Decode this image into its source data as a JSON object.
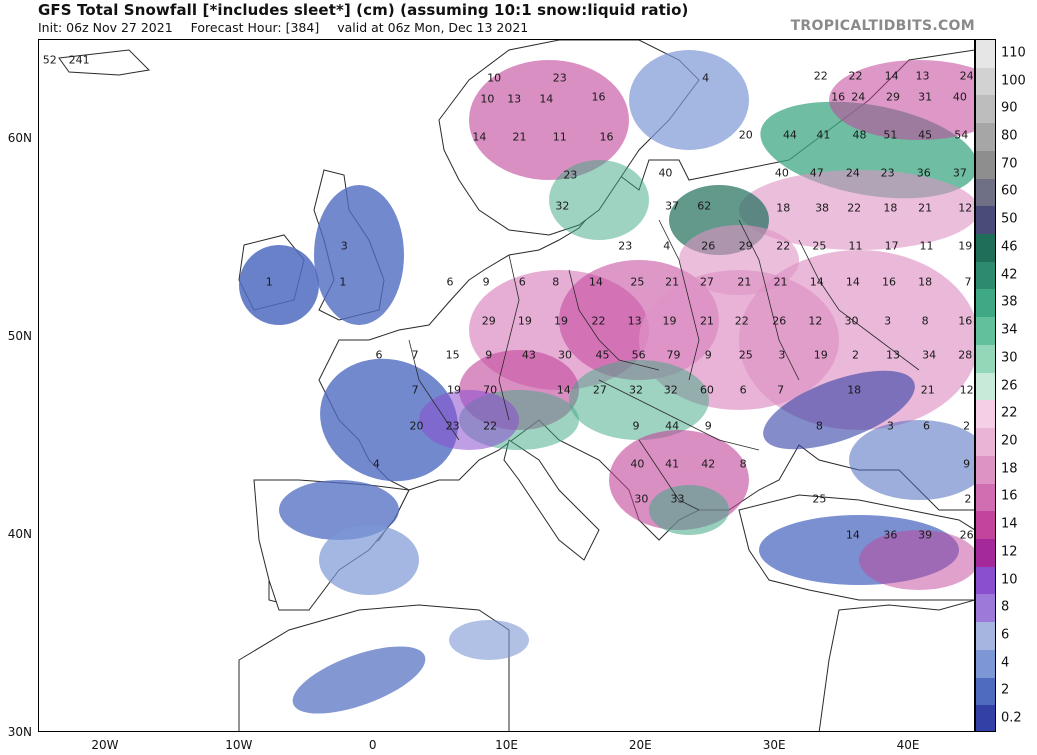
{
  "header": {
    "title": "GFS Total Snowfall [*includes sleet*] (cm) (assuming 10:1 snow:liquid ratio)",
    "init": "Init: 06z Nov 27 2021",
    "forecast_hour": "Forecast Hour: [384]",
    "valid": "valid at 06z Mon, Dec 13 2021",
    "credit": "TROPICALTIDBITS.COM"
  },
  "axes": {
    "lat_labels": [
      "60N",
      "50N",
      "40N",
      "30N"
    ],
    "lon_labels": [
      "20W",
      "10W",
      "0",
      "10E",
      "20E",
      "30E",
      "40E"
    ]
  },
  "colorbar": {
    "labels": [
      "110",
      "100",
      "90",
      "80",
      "70",
      "60",
      "50",
      "46",
      "42",
      "38",
      "34",
      "30",
      "26",
      "22",
      "20",
      "18",
      "16",
      "14",
      "12",
      "10",
      "8",
      "6",
      "4",
      "2",
      "0.2"
    ],
    "colors": [
      "#e6e6e6",
      "#d2d2d2",
      "#bdbdbd",
      "#a6a6a6",
      "#8e8e8e",
      "#6f6f86",
      "#4b4b7a",
      "#1f6e5a",
      "#2d8a6e",
      "#3fa884",
      "#63c09c",
      "#94d6b8",
      "#c8ebd9",
      "#f4cfe6",
      "#eab4d6",
      "#de93c5",
      "#d16db1",
      "#c2449b",
      "#a42a9c",
      "#8a4fcf",
      "#9d7ad9",
      "#a6b4e0",
      "#7d97d6",
      "#4f6bc0",
      "#3340a6"
    ]
  },
  "map": {
    "colors": {
      "land": "#ffffff",
      "border": "#2a2a2a",
      "light_blue": "#7d97d6",
      "blue": "#4f6bc0",
      "dark_blue": "#3340a6",
      "purple": "#8a4fcf",
      "magenta": "#c2449b",
      "pink": "#de93c5",
      "green": "#3fa884",
      "dark_green": "#1f6e5a"
    },
    "values": [
      {
        "t": "52",
        "lon": -24.2,
        "lat": 64.0
      },
      {
        "t": "241",
        "lon": -22.0,
        "lat": 64.0
      },
      {
        "t": "10",
        "lon": 9.0,
        "lat": 63.1
      },
      {
        "t": "23",
        "lon": 13.9,
        "lat": 63.1
      },
      {
        "t": "4",
        "lon": 24.8,
        "lat": 63.1
      },
      {
        "t": "22",
        "lon": 33.4,
        "lat": 63.2
      },
      {
        "t": "22",
        "lon": 36.0,
        "lat": 63.2
      },
      {
        "t": "14",
        "lon": 38.7,
        "lat": 63.2
      },
      {
        "t": "13",
        "lon": 41.0,
        "lat": 63.2
      },
      {
        "t": "24",
        "lon": 44.3,
        "lat": 63.2
      },
      {
        "t": "10",
        "lon": 8.5,
        "lat": 62.0
      },
      {
        "t": "13",
        "lon": 10.5,
        "lat": 62.0
      },
      {
        "t": "14",
        "lon": 12.9,
        "lat": 62.0
      },
      {
        "t": "16",
        "lon": 16.8,
        "lat": 62.1
      },
      {
        "t": "16",
        "lon": 34.7,
        "lat": 62.1
      },
      {
        "t": "24",
        "lon": 36.2,
        "lat": 62.1
      },
      {
        "t": "29",
        "lon": 38.8,
        "lat": 62.1
      },
      {
        "t": "31",
        "lon": 41.2,
        "lat": 62.1
      },
      {
        "t": "40",
        "lon": 43.8,
        "lat": 62.1
      },
      {
        "t": "14",
        "lon": 7.9,
        "lat": 60.1
      },
      {
        "t": "21",
        "lon": 10.9,
        "lat": 60.1
      },
      {
        "t": "11",
        "lon": 13.9,
        "lat": 60.1
      },
      {
        "t": "16",
        "lon": 17.4,
        "lat": 60.1
      },
      {
        "t": "20",
        "lon": 27.8,
        "lat": 60.2
      },
      {
        "t": "44",
        "lon": 31.1,
        "lat": 60.2
      },
      {
        "t": "41",
        "lon": 33.6,
        "lat": 60.2
      },
      {
        "t": "48",
        "lon": 36.3,
        "lat": 60.2
      },
      {
        "t": "51",
        "lon": 38.6,
        "lat": 60.2
      },
      {
        "t": "45",
        "lon": 41.2,
        "lat": 60.2
      },
      {
        "t": "54",
        "lon": 43.9,
        "lat": 60.2
      },
      {
        "t": "23",
        "lon": 14.7,
        "lat": 58.2
      },
      {
        "t": "40",
        "lon": 21.8,
        "lat": 58.3
      },
      {
        "t": "40",
        "lon": 30.5,
        "lat": 58.3
      },
      {
        "t": "47",
        "lon": 33.1,
        "lat": 58.3
      },
      {
        "t": "24",
        "lon": 35.8,
        "lat": 58.3
      },
      {
        "t": "23",
        "lon": 38.4,
        "lat": 58.3
      },
      {
        "t": "36",
        "lon": 41.1,
        "lat": 58.3
      },
      {
        "t": "37",
        "lon": 43.8,
        "lat": 58.3
      },
      {
        "t": "32",
        "lon": 14.1,
        "lat": 56.6
      },
      {
        "t": "37",
        "lon": 22.3,
        "lat": 56.6
      },
      {
        "t": "62",
        "lon": 24.7,
        "lat": 56.6
      },
      {
        "t": "18",
        "lon": 30.6,
        "lat": 56.5
      },
      {
        "t": "38",
        "lon": 33.5,
        "lat": 56.5
      },
      {
        "t": "22",
        "lon": 35.9,
        "lat": 56.5
      },
      {
        "t": "18",
        "lon": 38.6,
        "lat": 56.5
      },
      {
        "t": "21",
        "lon": 41.2,
        "lat": 56.5
      },
      {
        "t": "12",
        "lon": 44.2,
        "lat": 56.5
      },
      {
        "t": "23",
        "lon": 18.8,
        "lat": 54.6
      },
      {
        "t": "4",
        "lon": 21.9,
        "lat": 54.6
      },
      {
        "t": "26",
        "lon": 25.0,
        "lat": 54.6
      },
      {
        "t": "29",
        "lon": 27.8,
        "lat": 54.6
      },
      {
        "t": "22",
        "lon": 30.6,
        "lat": 54.6
      },
      {
        "t": "25",
        "lon": 33.3,
        "lat": 54.6
      },
      {
        "t": "11",
        "lon": 36.0,
        "lat": 54.6
      },
      {
        "t": "17",
        "lon": 38.7,
        "lat": 54.6
      },
      {
        "t": "11",
        "lon": 41.3,
        "lat": 54.6
      },
      {
        "t": "19",
        "lon": 44.2,
        "lat": 54.6
      },
      {
        "t": "3",
        "lon": -2.2,
        "lat": 54.6
      },
      {
        "t": "6",
        "lon": 5.7,
        "lat": 52.8
      },
      {
        "t": "9",
        "lon": 8.4,
        "lat": 52.8
      },
      {
        "t": "6",
        "lon": 11.1,
        "lat": 52.8
      },
      {
        "t": "8",
        "lon": 13.6,
        "lat": 52.8
      },
      {
        "t": "14",
        "lon": 16.6,
        "lat": 52.8
      },
      {
        "t": "25",
        "lon": 19.7,
        "lat": 52.8
      },
      {
        "t": "21",
        "lon": 22.3,
        "lat": 52.8
      },
      {
        "t": "27",
        "lon": 24.9,
        "lat": 52.8
      },
      {
        "t": "21",
        "lon": 27.7,
        "lat": 52.8
      },
      {
        "t": "21",
        "lon": 30.4,
        "lat": 52.8
      },
      {
        "t": "14",
        "lon": 33.1,
        "lat": 52.8
      },
      {
        "t": "14",
        "lon": 35.8,
        "lat": 52.8
      },
      {
        "t": "16",
        "lon": 38.5,
        "lat": 52.8
      },
      {
        "t": "18",
        "lon": 41.2,
        "lat": 52.8
      },
      {
        "t": "7",
        "lon": 44.4,
        "lat": 52.8
      },
      {
        "t": "1",
        "lon": -7.8,
        "lat": 52.8
      },
      {
        "t": "1",
        "lon": -2.3,
        "lat": 52.8
      },
      {
        "t": "29",
        "lon": 8.6,
        "lat": 50.8
      },
      {
        "t": "19",
        "lon": 11.3,
        "lat": 50.8
      },
      {
        "t": "19",
        "lon": 14.0,
        "lat": 50.8
      },
      {
        "t": "22",
        "lon": 16.8,
        "lat": 50.8
      },
      {
        "t": "13",
        "lon": 19.5,
        "lat": 50.8
      },
      {
        "t": "19",
        "lon": 22.1,
        "lat": 50.8
      },
      {
        "t": "21",
        "lon": 24.9,
        "lat": 50.8
      },
      {
        "t": "22",
        "lon": 27.5,
        "lat": 50.8
      },
      {
        "t": "26",
        "lon": 30.3,
        "lat": 50.8
      },
      {
        "t": "12",
        "lon": 33.0,
        "lat": 50.8
      },
      {
        "t": "30",
        "lon": 35.7,
        "lat": 50.8
      },
      {
        "t": "3",
        "lon": 38.4,
        "lat": 50.8
      },
      {
        "t": "8",
        "lon": 41.2,
        "lat": 50.8
      },
      {
        "t": "16",
        "lon": 44.2,
        "lat": 50.8
      },
      {
        "t": "6",
        "lon": 0.4,
        "lat": 49.1
      },
      {
        "t": "7",
        "lon": 3.1,
        "lat": 49.1
      },
      {
        "t": "15",
        "lon": 5.9,
        "lat": 49.1
      },
      {
        "t": "9",
        "lon": 8.6,
        "lat": 49.1
      },
      {
        "t": "43",
        "lon": 11.6,
        "lat": 49.1
      },
      {
        "t": "30",
        "lon": 14.3,
        "lat": 49.1
      },
      {
        "t": "45",
        "lon": 17.1,
        "lat": 49.1
      },
      {
        "t": "56",
        "lon": 19.8,
        "lat": 49.1
      },
      {
        "t": "79",
        "lon": 22.4,
        "lat": 49.1
      },
      {
        "t": "9",
        "lon": 25.0,
        "lat": 49.1
      },
      {
        "t": "25",
        "lon": 27.8,
        "lat": 49.1
      },
      {
        "t": "3",
        "lon": 30.5,
        "lat": 49.1
      },
      {
        "t": "19",
        "lon": 33.4,
        "lat": 49.1
      },
      {
        "t": "2",
        "lon": 36.0,
        "lat": 49.1
      },
      {
        "t": "13",
        "lon": 38.8,
        "lat": 49.1
      },
      {
        "t": "34",
        "lon": 41.5,
        "lat": 49.1
      },
      {
        "t": "28",
        "lon": 44.2,
        "lat": 49.1
      },
      {
        "t": "7",
        "lon": 3.1,
        "lat": 47.3
      },
      {
        "t": "19",
        "lon": 6.0,
        "lat": 47.3
      },
      {
        "t": "70",
        "lon": 8.7,
        "lat": 47.3
      },
      {
        "t": "14",
        "lon": 14.2,
        "lat": 47.3
      },
      {
        "t": "27",
        "lon": 16.9,
        "lat": 47.3
      },
      {
        "t": "32",
        "lon": 19.6,
        "lat": 47.3
      },
      {
        "t": "32",
        "lon": 22.2,
        "lat": 47.3
      },
      {
        "t": "60",
        "lon": 24.9,
        "lat": 47.3
      },
      {
        "t": "6",
        "lon": 27.6,
        "lat": 47.3
      },
      {
        "t": "7",
        "lon": 30.4,
        "lat": 47.3
      },
      {
        "t": "18",
        "lon": 35.9,
        "lat": 47.3
      },
      {
        "t": "21",
        "lon": 41.4,
        "lat": 47.3
      },
      {
        "t": "12",
        "lon": 44.3,
        "lat": 47.3
      },
      {
        "t": "20",
        "lon": 3.2,
        "lat": 45.5
      },
      {
        "t": "23",
        "lon": 5.9,
        "lat": 45.5
      },
      {
        "t": "22",
        "lon": 8.7,
        "lat": 45.5
      },
      {
        "t": "9",
        "lon": 19.6,
        "lat": 45.5
      },
      {
        "t": "44",
        "lon": 22.3,
        "lat": 45.5
      },
      {
        "t": "9",
        "lon": 25.0,
        "lat": 45.5
      },
      {
        "t": "8",
        "lon": 33.3,
        "lat": 45.5
      },
      {
        "t": "3",
        "lon": 38.6,
        "lat": 45.5
      },
      {
        "t": "6",
        "lon": 41.3,
        "lat": 45.5
      },
      {
        "t": "2",
        "lon": 44.3,
        "lat": 45.5
      },
      {
        "t": "4",
        "lon": 0.2,
        "lat": 43.6
      },
      {
        "t": "40",
        "lon": 19.7,
        "lat": 43.6
      },
      {
        "t": "41",
        "lon": 22.3,
        "lat": 43.6
      },
      {
        "t": "42",
        "lon": 25.0,
        "lat": 43.6
      },
      {
        "t": "8",
        "lon": 27.6,
        "lat": 43.6
      },
      {
        "t": "9",
        "lon": 44.3,
        "lat": 43.6
      },
      {
        "t": "30",
        "lon": 20.0,
        "lat": 41.8
      },
      {
        "t": "33",
        "lon": 22.7,
        "lat": 41.8
      },
      {
        "t": "25",
        "lon": 33.3,
        "lat": 41.8
      },
      {
        "t": "2",
        "lon": 44.4,
        "lat": 41.8
      },
      {
        "t": "14",
        "lon": 35.8,
        "lat": 40.0
      },
      {
        "t": "36",
        "lon": 38.6,
        "lat": 40.0
      },
      {
        "t": "39",
        "lon": 41.2,
        "lat": 40.0
      },
      {
        "t": "26",
        "lon": 44.3,
        "lat": 40.0
      }
    ]
  }
}
